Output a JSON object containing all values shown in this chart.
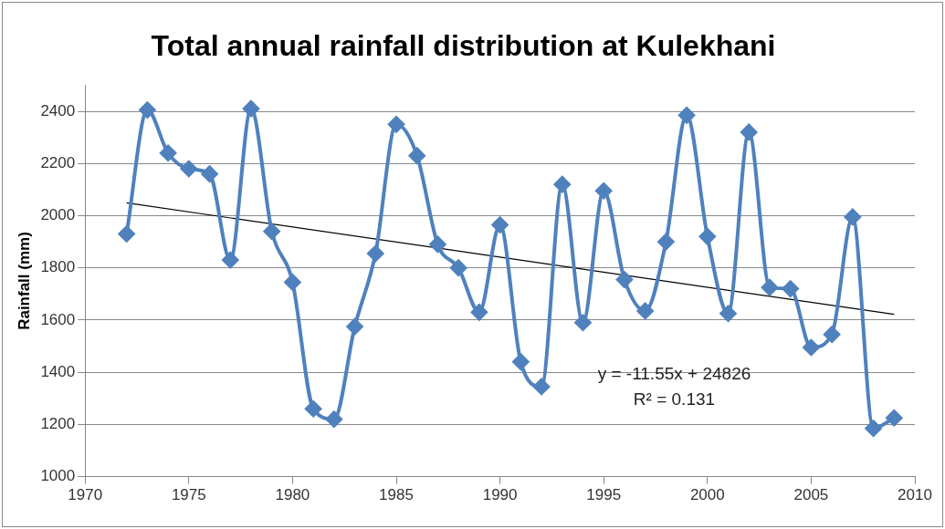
{
  "chart_data": {
    "type": "line",
    "title": "Total annual rainfall distribution at Kulekhani",
    "ylabel": "Rainfall (mm)",
    "x": [
      1972,
      1973,
      1974,
      1975,
      1976,
      1977,
      1978,
      1979,
      1980,
      1981,
      1982,
      1983,
      1984,
      1985,
      1986,
      1987,
      1988,
      1989,
      1990,
      1991,
      1992,
      1993,
      1994,
      1995,
      1996,
      1997,
      1998,
      1999,
      2000,
      2001,
      2002,
      2003,
      2004,
      2005,
      2006,
      2007,
      2008,
      2009
    ],
    "series": [
      {
        "color": "#4f81bd",
        "marker": "diamond",
        "values": [
          1930,
          2405,
          2240,
          2180,
          2160,
          1830,
          2410,
          1940,
          1745,
          1260,
          1220,
          1575,
          1855,
          2350,
          2230,
          1890,
          1800,
          1630,
          1965,
          1440,
          1345,
          2120,
          1590,
          2095,
          1755,
          1635,
          1900,
          2385,
          1920,
          1625,
          2320,
          1725,
          1720,
          1495,
          1545,
          1995,
          1185,
          1225
        ]
      },
      {
        "color": "#000000",
        "marker": "none",
        "x": [
          1972,
          2009
        ],
        "values": [
          2049,
          1622
        ]
      }
    ],
    "xlim": [
      1970,
      2010
    ],
    "xticks": [
      1970,
      1975,
      1980,
      1985,
      1990,
      1995,
      2000,
      2005,
      2010
    ],
    "ylim": [
      1000,
      2500
    ],
    "yticks": [
      1000,
      1200,
      1400,
      1600,
      1800,
      2000,
      2200,
      2400
    ],
    "grid": "y",
    "legend": false,
    "annotations": [
      "y = -11.55x + 24826",
      "R² = 0.131"
    ]
  }
}
